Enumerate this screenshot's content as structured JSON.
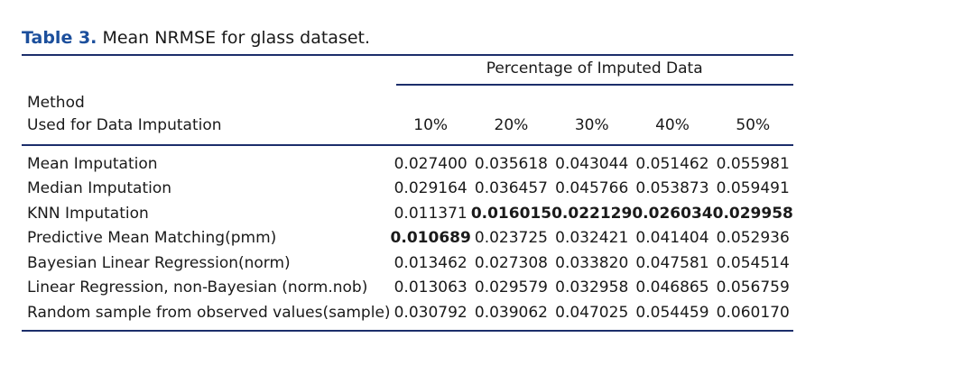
{
  "caption": {
    "label": "Table 3.",
    "text": "Mean NRMSE for glass dataset."
  },
  "table": {
    "group_header": "Percentage of Imputed Data",
    "method_header_line1": "Method",
    "method_header_line2": "Used for Data Imputation",
    "columns": [
      "10%",
      "20%",
      "30%",
      "40%",
      "50%"
    ],
    "rows": [
      {
        "method": "Mean Imputation",
        "values": [
          "0.027400",
          "0.035618",
          "0.043044",
          "0.051462",
          "0.055981"
        ],
        "bold": [
          false,
          false,
          false,
          false,
          false
        ]
      },
      {
        "method": "Median Imputation",
        "values": [
          "0.029164",
          "0.036457",
          "0.045766",
          "0.053873",
          "0.059491"
        ],
        "bold": [
          false,
          false,
          false,
          false,
          false
        ]
      },
      {
        "method": "KNN Imputation",
        "values": [
          "0.011371",
          "0.016015",
          "0.022129",
          "0.026034",
          "0.029958"
        ],
        "bold": [
          false,
          true,
          true,
          true,
          true
        ]
      },
      {
        "method": "Predictive Mean Matching(pmm)",
        "values": [
          "0.010689",
          "0.023725",
          "0.032421",
          "0.041404",
          "0.052936"
        ],
        "bold": [
          true,
          false,
          false,
          false,
          false
        ]
      },
      {
        "method": "Bayesian Linear Regression(norm)",
        "values": [
          "0.013462",
          "0.027308",
          "0.033820",
          "0.047581",
          "0.054514"
        ],
        "bold": [
          false,
          false,
          false,
          false,
          false
        ]
      },
      {
        "method": "Linear Regression, non-Bayesian (norm.nob)",
        "values": [
          "0.013063",
          "0.029579",
          "0.032958",
          "0.046865",
          "0.056759"
        ],
        "bold": [
          false,
          false,
          false,
          false,
          false
        ]
      },
      {
        "method": "Random sample from observed values(sample)",
        "values": [
          "0.030792",
          "0.039062",
          "0.047025",
          "0.054459",
          "0.060170"
        ],
        "bold": [
          false,
          false,
          false,
          false,
          false
        ]
      }
    ]
  },
  "colors": {
    "caption_label": "#1c4f9c",
    "rules": "#1c2e6b",
    "text": "#1a1a1a"
  }
}
